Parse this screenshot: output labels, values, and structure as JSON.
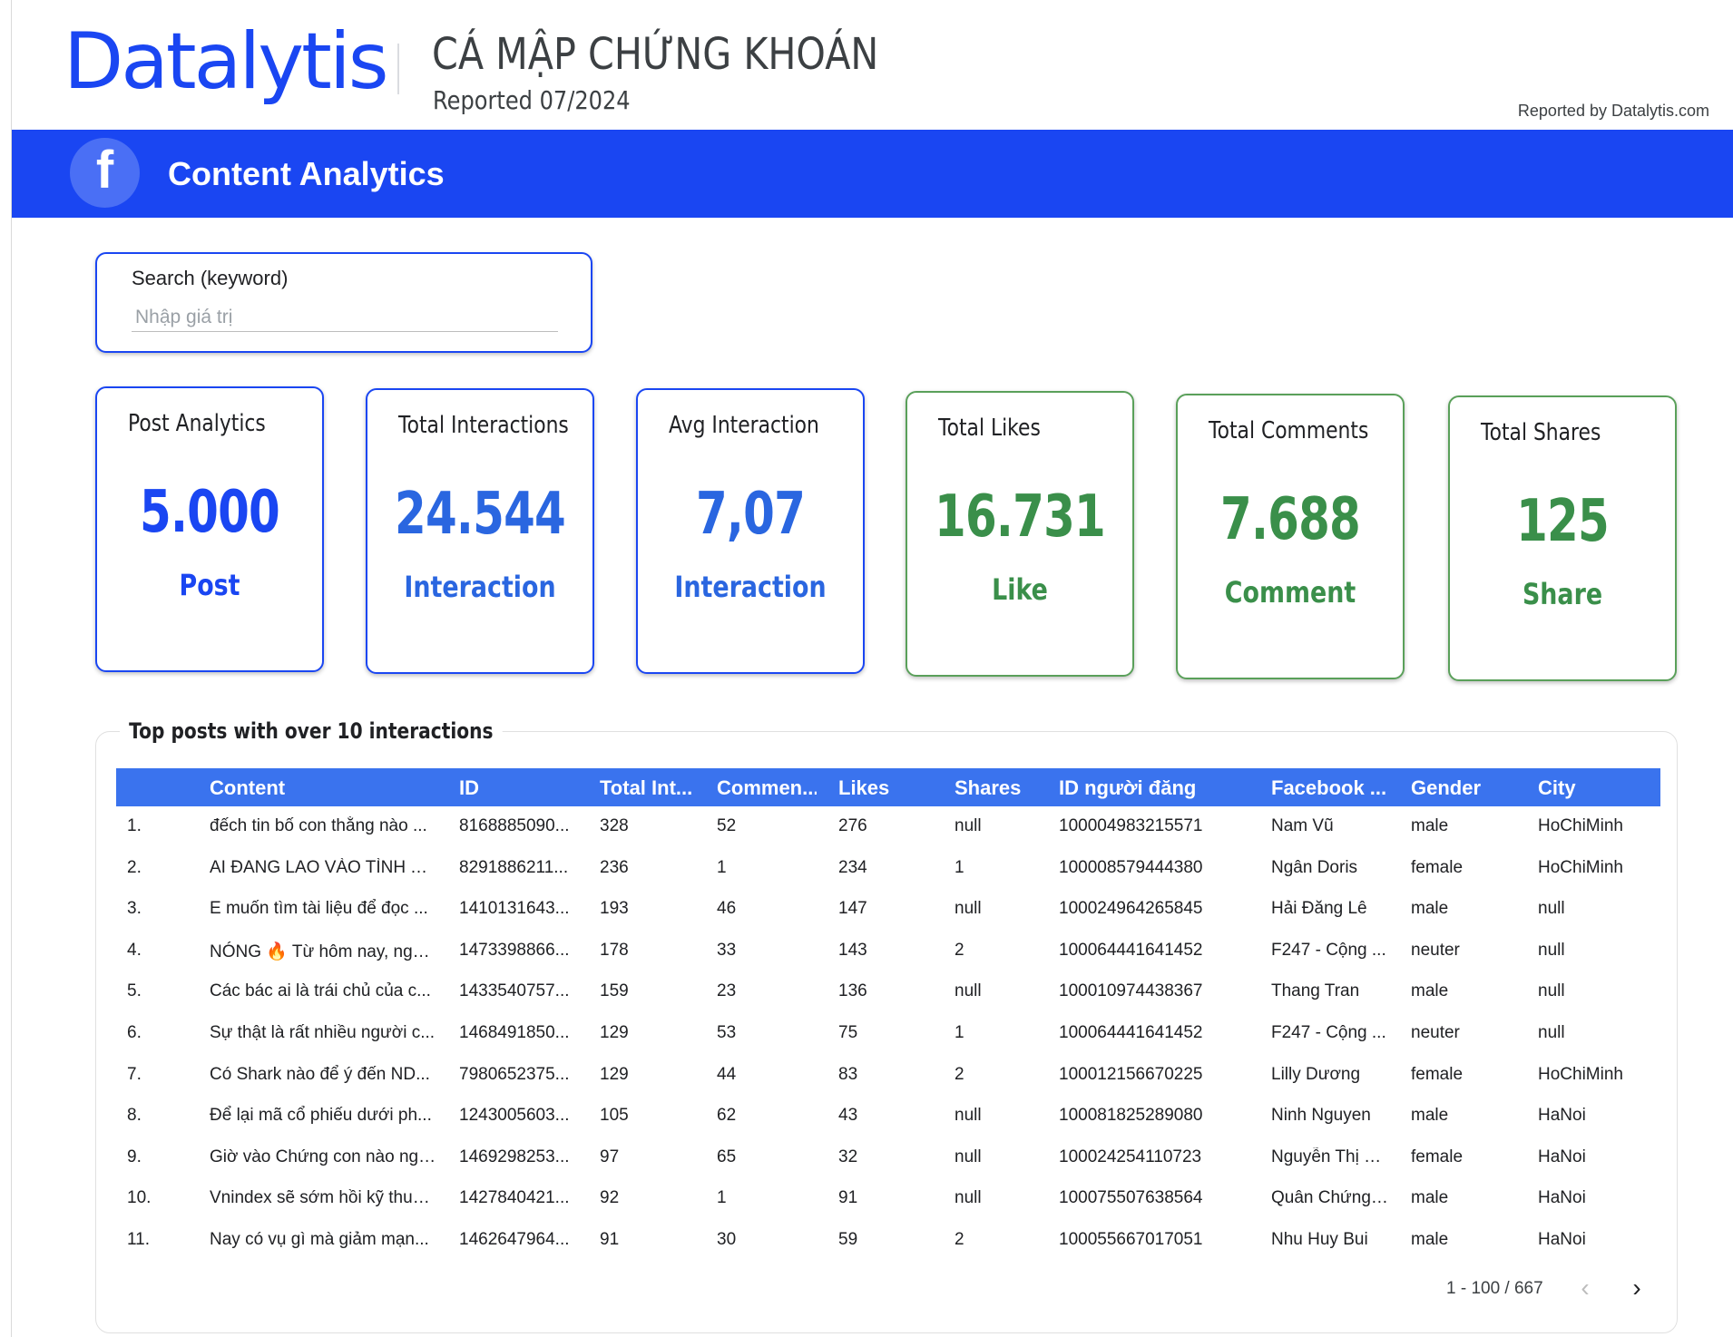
{
  "header": {
    "logo_text": "Datalytis",
    "title": "CÁ MẬP CHỨNG KHOÁN",
    "subtitle": "Reported 07/2024",
    "reported_by": "Reported by Datalytis.com"
  },
  "banner": {
    "icon": "facebook-icon",
    "icon_glyph": "f",
    "title": "Content Analytics",
    "color": "#1a46f2"
  },
  "search": {
    "label": "Search (keyword)",
    "placeholder": "Nhập giá trị",
    "value": ""
  },
  "cards": [
    {
      "title": "Post Analytics",
      "value": "5.000",
      "unit": "Post"
    },
    {
      "title": "Total Interactions",
      "value": "24.544",
      "unit": "Interaction"
    },
    {
      "title": "Avg Interaction",
      "value": "7,07",
      "unit": "Interaction"
    },
    {
      "title": "Total Likes",
      "value": "16.731",
      "unit": "Like"
    },
    {
      "title": "Total Comments",
      "value": "7.688",
      "unit": "Comment"
    },
    {
      "title": "Total Shares",
      "value": "125",
      "unit": "Share"
    }
  ],
  "table": {
    "title": "Top posts with over 10 interactions",
    "columns": [
      "Content",
      "ID",
      "Total Int...",
      "Commen...",
      "Likes",
      "Shares",
      "ID người đăng",
      "Facebook ...",
      "Gender",
      "City"
    ],
    "rows": [
      [
        "1.",
        "đếch tin bố con thằng nào ...",
        "8168885090...",
        "328",
        "52",
        "276",
        "null",
        "100004983215571",
        "Nam Vũ",
        "male",
        "HoChiMinh"
      ],
      [
        "2.",
        "AI ĐANG LAO VÀO TÌNH TR...",
        "8291886211...",
        "236",
        "1",
        "234",
        "1",
        "100008579444380",
        "Ngân Doris",
        "female",
        "HoChiMinh"
      ],
      [
        "3.",
        "E muốn tìm tài liệu để đọc ...",
        "1410131643...",
        "193",
        "46",
        "147",
        "null",
        "100024964265845",
        "Hải Đăng Lê",
        "male",
        "null"
      ],
      [
        "4.",
        "NÓNG 🔥 Từ hôm nay, ngâ...",
        "1473398866...",
        "178",
        "33",
        "143",
        "2",
        "100064441641452",
        "F247 - Cộng ...",
        "neuter",
        "null"
      ],
      [
        "5.",
        "Các bác ai là trái chủ của c...",
        "1433540757...",
        "159",
        "23",
        "136",
        "null",
        "100010974438367",
        "Thang Tran",
        "male",
        "null"
      ],
      [
        "6.",
        "Sự thật là rất nhiều người c...",
        "1468491850...",
        "129",
        "53",
        "75",
        "1",
        "100064441641452",
        "F247 - Cộng ...",
        "neuter",
        "null"
      ],
      [
        "7.",
        "Có Shark nào để ý đến ND...",
        "7980652375...",
        "129",
        "44",
        "83",
        "2",
        "100012156670225",
        "Lilly Dương",
        "female",
        "HoChiMinh"
      ],
      [
        "8.",
        "Để lại mã cổ phiếu dưới ph...",
        "1243005603...",
        "105",
        "62",
        "43",
        "null",
        "100081825289080",
        "Ninh Nguyen",
        "male",
        "HaNoi"
      ],
      [
        "9.",
        "Giờ vào Chứng con nào ngo...",
        "1469298253...",
        "97",
        "65",
        "32",
        "null",
        "100024254110723",
        "Nguyễn Thị B...",
        "female",
        "HaNoi"
      ],
      [
        "10.",
        "Vnindex sẽ sớm hồi kỹ thuậ...",
        "1427840421...",
        "92",
        "1",
        "91",
        "null",
        "100075507638564",
        "Quân Chứng ...",
        "male",
        "HaNoi"
      ],
      [
        "11.",
        "Nay có vụ gì mà giảm mạn...",
        "1462647964...",
        "91",
        "30",
        "59",
        "2",
        "100055667017051",
        "Nhu Huy Bui",
        "male",
        "HaNoi"
      ]
    ],
    "pagination": {
      "text": "1 - 100 / 667",
      "prev_icon": "chevron-left-icon",
      "next_icon": "chevron-right-icon"
    }
  }
}
